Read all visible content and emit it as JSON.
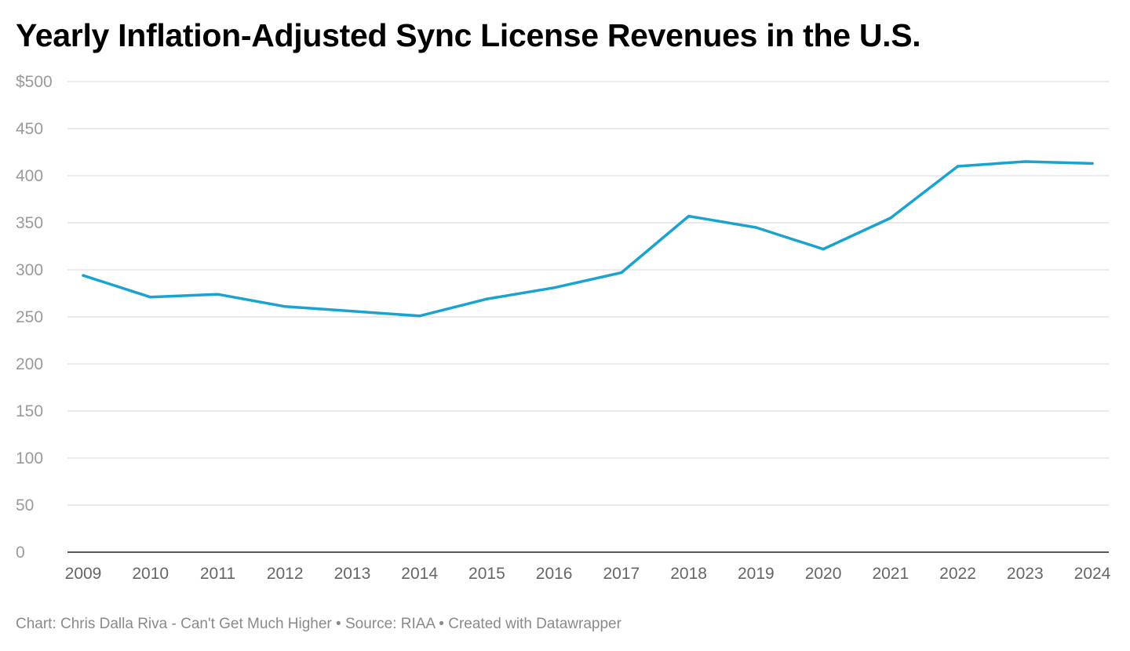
{
  "chart_data": {
    "type": "line",
    "title": "Yearly Inflation-Adjusted Sync License Revenues in the U.S.",
    "xlabel": "",
    "ylabel": "",
    "x": [
      "2009",
      "2010",
      "2011",
      "2012",
      "2013",
      "2014",
      "2015",
      "2016",
      "2017",
      "2018",
      "2019",
      "2020",
      "2021",
      "2022",
      "2023",
      "2024"
    ],
    "series": [
      {
        "name": "Sync license revenues",
        "color": "#1ba3d0",
        "values": [
          294,
          271,
          274,
          261,
          256,
          251,
          269,
          281,
          297,
          357,
          345,
          322,
          355,
          410,
          415,
          413
        ]
      }
    ],
    "ylim": [
      0,
      500
    ],
    "yticks": [
      0,
      50,
      100,
      150,
      200,
      250,
      300,
      350,
      400,
      450,
      500
    ],
    "ytick_labels": [
      "0",
      "50",
      "100",
      "150",
      "200",
      "250",
      "300",
      "350",
      "400",
      "450",
      "$500"
    ],
    "grid": true,
    "legend": "none"
  },
  "footer": "Chart: Chris Dalla Riva - Can't Get Much Higher • Source: RIAA • Created with Datawrapper"
}
